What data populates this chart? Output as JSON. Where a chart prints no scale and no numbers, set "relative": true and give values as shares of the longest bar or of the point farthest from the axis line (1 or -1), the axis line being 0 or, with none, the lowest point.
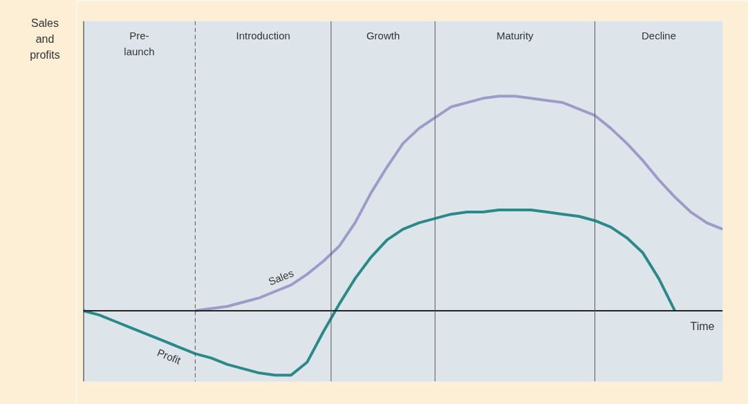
{
  "chart_data": {
    "type": "line",
    "relative": true,
    "xlabel": "Time",
    "ylabel": "Sales and profits",
    "grid": false,
    "line_style": "solid",
    "categories": [
      null,
      null,
      null,
      null,
      null,
      null,
      null,
      null,
      null,
      null,
      null,
      null,
      null,
      null,
      null,
      null,
      null,
      null,
      null,
      null,
      null,
      null,
      null,
      null,
      null,
      null,
      null,
      null,
      null,
      null,
      null,
      null,
      null,
      null,
      null,
      null,
      null,
      null,
      null,
      null,
      null
    ],
    "series": [
      {
        "name": "Sales",
        "color": "#9d9cc8",
        "values": [
          null,
          null,
          null,
          null,
          null,
          null,
          null,
          0,
          0.01,
          0.02,
          0.04,
          0.06,
          0.09,
          0.12,
          0.17,
          0.23,
          0.3,
          0.41,
          0.55,
          0.67,
          0.78,
          0.85,
          0.9,
          0.95,
          0.97,
          0.99,
          1,
          1,
          0.99,
          0.98,
          0.97,
          0.94,
          0.91,
          0.85,
          0.78,
          0.7,
          0.61,
          0.53,
          0.46,
          0.41,
          0.38
        ]
      },
      {
        "name": "Profit",
        "color": "#2a8a8a",
        "values": [
          0,
          -0.02,
          -0.05,
          -0.08,
          -0.11,
          -0.14,
          -0.17,
          -0.2,
          -0.22,
          -0.25,
          -0.27,
          -0.29,
          -0.3,
          -0.3,
          -0.24,
          -0.1,
          0.03,
          0.15,
          0.25,
          0.33,
          0.38,
          0.41,
          0.43,
          0.45,
          0.46,
          0.46,
          0.47,
          0.47,
          0.47,
          0.46,
          0.45,
          0.44,
          0.42,
          0.39,
          0.34,
          0.27,
          0.15,
          0,
          null,
          null,
          null
        ]
      }
    ],
    "annotations": [
      "Pre-launch",
      "Introduction",
      "Growth",
      "Maturity",
      "Decline"
    ]
  }
}
